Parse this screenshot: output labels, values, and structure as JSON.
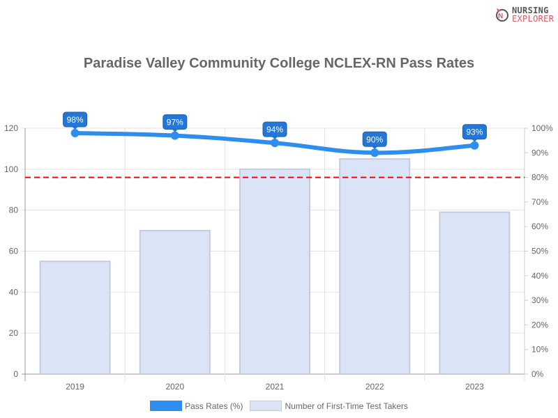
{
  "logo": {
    "line1": "NURSING",
    "line2": "EXPLORER"
  },
  "chart_data": {
    "type": "bar+line",
    "title": "Paradise Valley Community College NCLEX-RN Pass Rates",
    "categories": [
      "2019",
      "2020",
      "2021",
      "2022",
      "2023"
    ],
    "series": [
      {
        "name": "Pass Rates (%)",
        "type": "line",
        "axis": "right",
        "values": [
          98,
          97,
          94,
          90,
          93
        ],
        "labels": [
          "98%",
          "97%",
          "94%",
          "90%",
          "93%"
        ],
        "color": "#2e8ef0"
      },
      {
        "name": "Number of First-Time Test Takers",
        "type": "bar",
        "axis": "left",
        "values": [
          55,
          70,
          100,
          105,
          79
        ],
        "color": "#dbe3f6"
      }
    ],
    "reference_line": {
      "axis": "right",
      "value": 80,
      "color": "#ff0000",
      "style": "dashed"
    },
    "left_axis": {
      "ylim": [
        0,
        120
      ],
      "ticks": [
        "0",
        "20",
        "40",
        "60",
        "80",
        "100",
        "120"
      ]
    },
    "right_axis": {
      "ylim": [
        0,
        100
      ],
      "ticks": [
        "0%",
        "10%",
        "20%",
        "30%",
        "40%",
        "50%",
        "60%",
        "70%",
        "80%",
        "90%",
        "100%"
      ]
    },
    "grid": true,
    "legend": "bottom"
  }
}
